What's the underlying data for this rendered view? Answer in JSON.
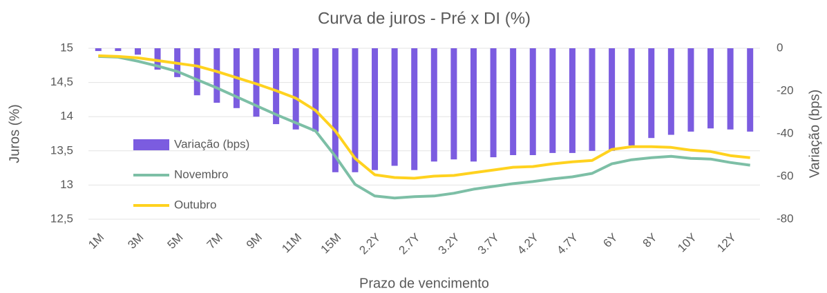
{
  "chart_data": {
    "type": "bar-line",
    "title": "Curva de juros - Pré x DI (%)",
    "x_label": "Prazo de vencimento",
    "y_label": "Juros (%)",
    "y2_label": "Variação (bps)",
    "categories": [
      "1M",
      null,
      "3M",
      null,
      "5M",
      null,
      "7M",
      null,
      "9M",
      null,
      "11M",
      null,
      "15M",
      null,
      "2.2Y",
      null,
      "2.7Y",
      null,
      "3.2Y",
      null,
      "3.7Y",
      null,
      "4.2Y",
      null,
      "4.7Y",
      null,
      "6Y",
      null,
      "8Y",
      null,
      "10Y",
      null,
      "12Y",
      null
    ],
    "series": [
      {
        "name": "Variação (bps)",
        "type": "bar",
        "axis": "y2",
        "color": "#7b5ce0",
        "values": [
          -1.3,
          -1.3,
          -3,
          -10,
          -13.5,
          -22,
          -25.5,
          -28,
          -32,
          -35.5,
          -38,
          -39,
          -58,
          -58,
          -57,
          -55,
          -57,
          -53,
          -52,
          -53,
          -51,
          -50,
          -50,
          -49,
          -49,
          -48,
          -48,
          -45.5,
          -42,
          -40.5,
          -39,
          -37.5,
          -38,
          -39
        ]
      },
      {
        "name": "Novembro",
        "type": "line",
        "axis": "y",
        "color": "#7dbfa6",
        "values": [
          14.88,
          14.87,
          14.81,
          14.74,
          14.66,
          14.54,
          14.42,
          14.29,
          14.16,
          14.03,
          13.91,
          13.79,
          13.42,
          13.01,
          12.84,
          12.81,
          12.83,
          12.84,
          12.88,
          12.94,
          12.98,
          13.02,
          13.05,
          13.09,
          13.12,
          13.17,
          13.31,
          13.37,
          13.4,
          13.42,
          13.39,
          13.38,
          13.33,
          13.29
        ]
      },
      {
        "name": "Outubro",
        "type": "line",
        "axis": "y",
        "color": "#ffd21f",
        "values": [
          14.89,
          14.88,
          14.86,
          14.82,
          14.78,
          14.74,
          14.66,
          14.57,
          14.48,
          14.38,
          14.27,
          14.09,
          13.79,
          13.39,
          13.15,
          13.11,
          13.1,
          13.13,
          13.14,
          13.18,
          13.22,
          13.26,
          13.27,
          13.31,
          13.34,
          13.36,
          13.52,
          13.56,
          13.56,
          13.55,
          13.51,
          13.49,
          13.43,
          13.4
        ]
      }
    ],
    "ylim": [
      12.5,
      15
    ],
    "yticks": [
      {
        "value": 12.5,
        "label": "12,5"
      },
      13,
      {
        "value": 13.5,
        "label": "13,5"
      },
      14,
      {
        "value": 14.5,
        "label": "14,5"
      },
      15
    ],
    "y2lim": [
      -80,
      0
    ],
    "y2ticks": [
      -80,
      -60,
      -40,
      -20,
      0
    ],
    "grid": true,
    "legend": "left"
  }
}
